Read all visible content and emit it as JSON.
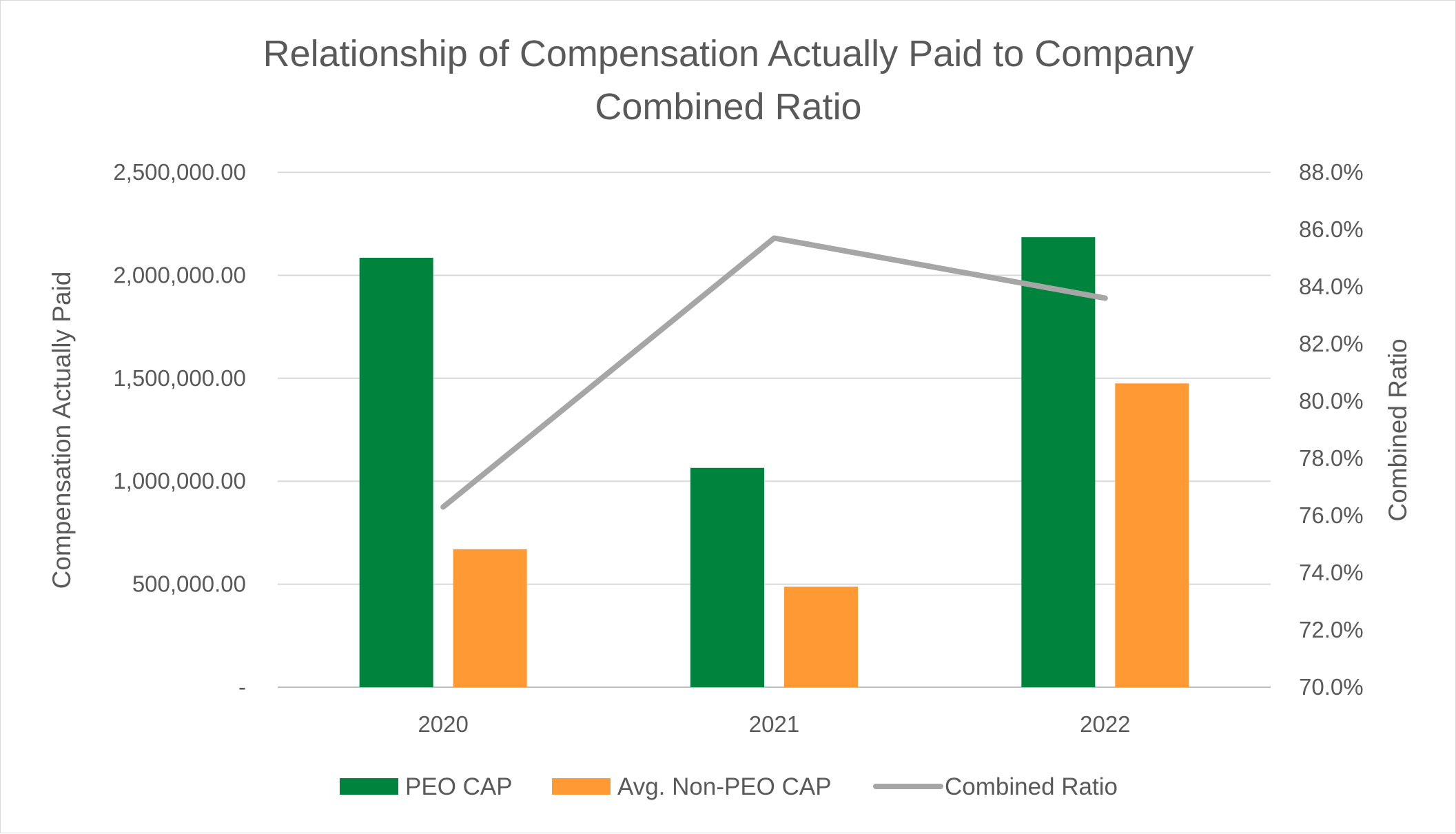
{
  "chart_data": {
    "type": "bar",
    "title": "Relationship of Compensation Actually Paid to Company Combined Ratio",
    "title_lines": [
      "Relationship of Compensation Actually Paid to Company",
      "Combined Ratio"
    ],
    "categories": [
      "2020",
      "2021",
      "2022"
    ],
    "ylabel": "Compensation Actually Paid",
    "y2label": "Combined Ratio",
    "ylim": [
      0,
      2500000
    ],
    "y2lim": [
      70.0,
      88.0
    ],
    "y_ticks": [
      0,
      500000,
      1000000,
      1500000,
      2000000,
      2500000
    ],
    "y_tick_labels": [
      "-",
      "500,000.00",
      "1,000,000.00",
      "1,500,000.00",
      "2,000,000.00",
      "2,500,000.00"
    ],
    "y2_ticks": [
      70,
      72,
      74,
      76,
      78,
      80,
      82,
      84,
      86,
      88
    ],
    "y2_tick_labels": [
      "70.0%",
      "72.0%",
      "74.0%",
      "76.0%",
      "78.0%",
      "80.0%",
      "82.0%",
      "84.0%",
      "86.0%",
      "88.0%"
    ],
    "grid": true,
    "legend_position": "bottom",
    "series": [
      {
        "name": "PEO CAP",
        "kind": "bar",
        "axis": "left",
        "color": "#00843d",
        "values": [
          2085000,
          1065000,
          2185000
        ]
      },
      {
        "name": "Avg. Non-PEO CAP",
        "kind": "bar",
        "axis": "left",
        "color": "#ff9933",
        "values": [
          670000,
          488000,
          1475000
        ]
      },
      {
        "name": "Combined Ratio",
        "kind": "line",
        "axis": "right",
        "color": "#a6a6a6",
        "values": [
          76.3,
          85.7,
          83.6
        ]
      }
    ]
  }
}
